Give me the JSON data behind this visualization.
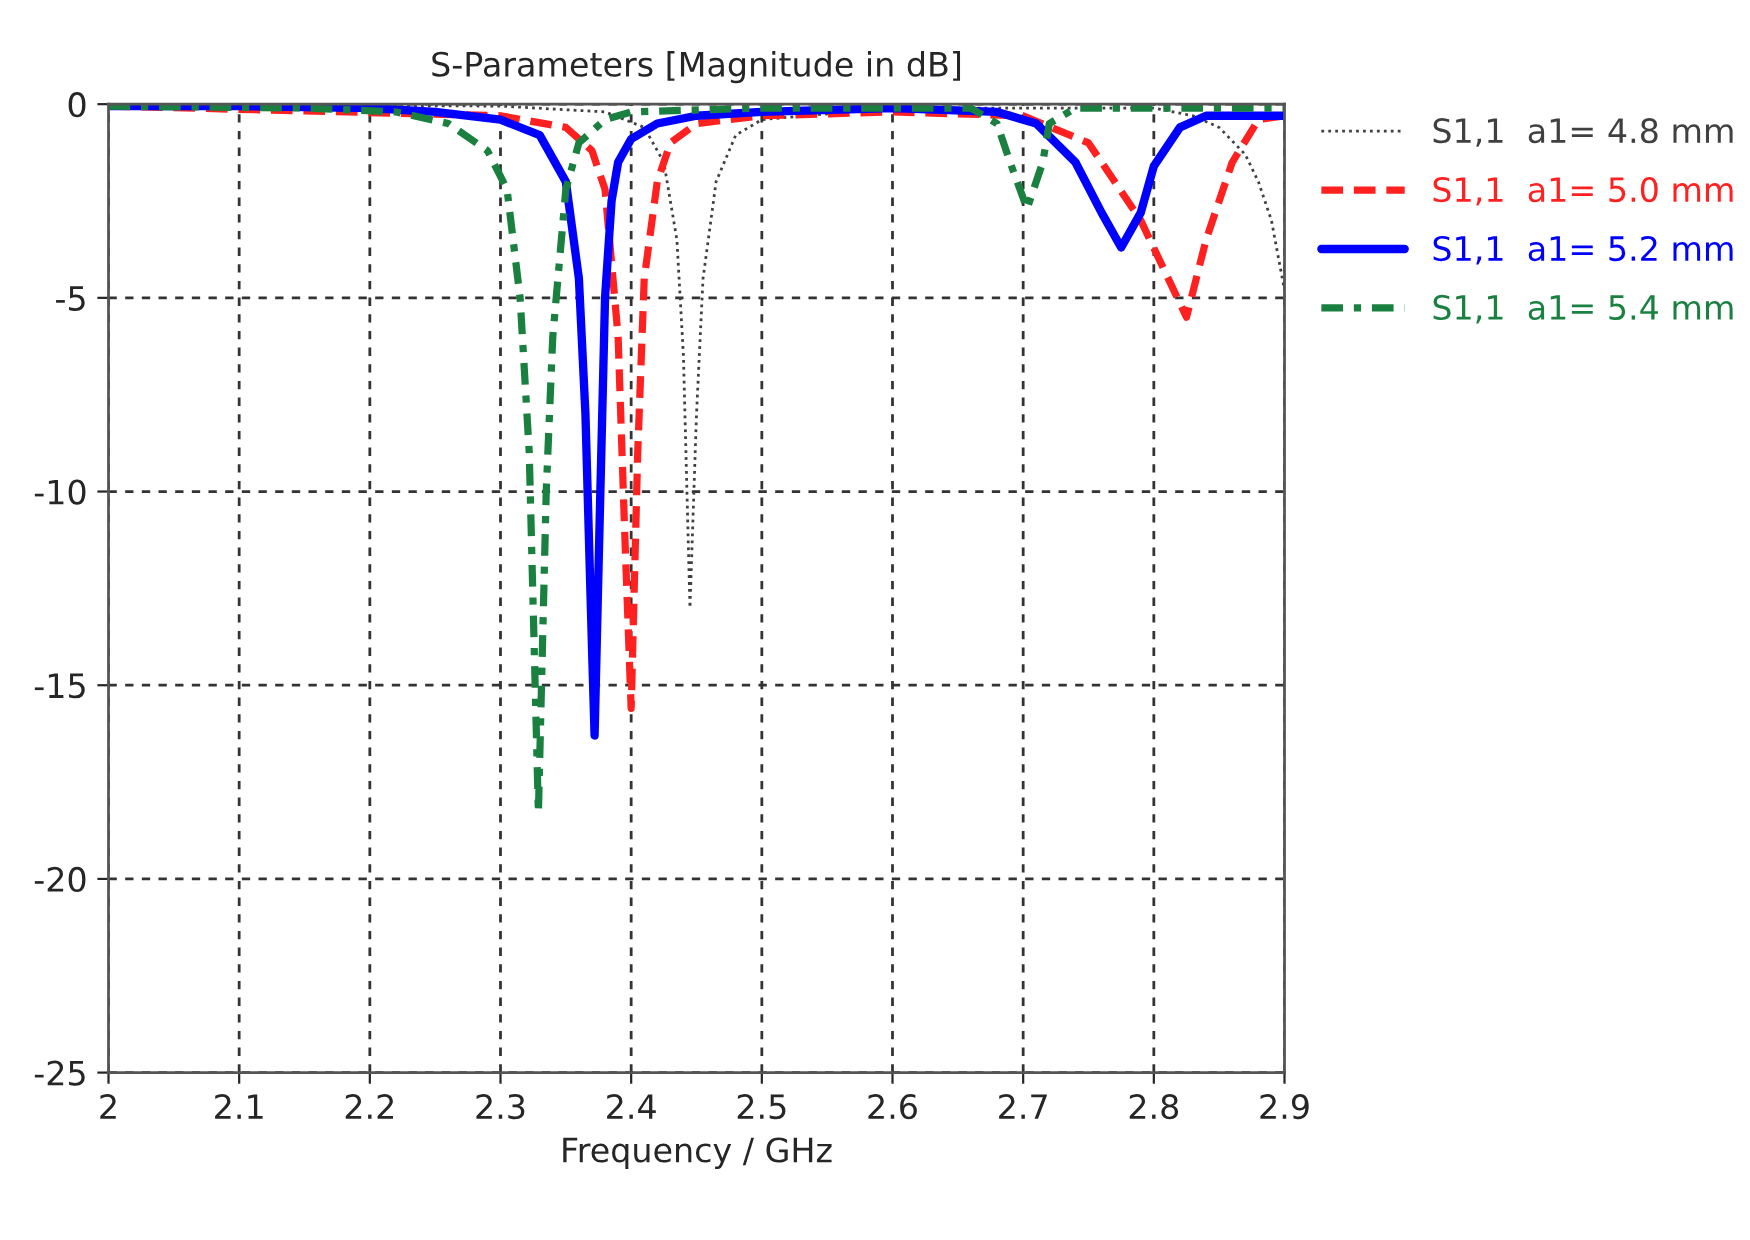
{
  "chart_data": {
    "type": "line",
    "title": "S-Parameters [Magnitude in dB]",
    "xlabel": "Frequency / GHz",
    "xlim": [
      2,
      2.9
    ],
    "xticks": [
      2,
      2.1,
      2.2,
      2.3,
      2.4,
      2.5,
      2.6,
      2.7,
      2.8,
      2.9
    ],
    "ylim": [
      -25,
      0
    ],
    "yticks": [
      {
        "value": -25,
        "label": "-25"
      },
      {
        "value": -20,
        "label": "-20"
      },
      {
        "value": -15,
        "label": "-15"
      },
      {
        "value": -10,
        "label": "-10"
      },
      {
        "value": -5,
        "label": "-5"
      },
      0
    ],
    "grid": true,
    "legend": "right",
    "marker": "none",
    "series": [
      {
        "name": "S1,1  a1= 4.8 mm",
        "color": "#404040",
        "line_style": "dotted",
        "x": [
          2.0,
          2.3,
          2.38,
          2.41,
          2.425,
          2.435,
          2.44,
          2.445,
          2.45,
          2.455,
          2.465,
          2.48,
          2.5,
          2.6,
          2.8,
          2.83,
          2.85,
          2.87,
          2.88,
          2.89,
          2.9
        ],
        "values": [
          0,
          -0.05,
          -0.2,
          -0.6,
          -1.5,
          -3.5,
          -6.5,
          -13.0,
          -8,
          -4.5,
          -2.0,
          -0.8,
          -0.4,
          -0.1,
          -0.1,
          -0.3,
          -0.6,
          -1.3,
          -2.0,
          -3.0,
          -4.8
        ]
      },
      {
        "name": "S1,1  a1= 5.0 mm",
        "color": "#ff2020",
        "line_style": "dashed",
        "x": [
          2.0,
          2.3,
          2.35,
          2.37,
          2.38,
          2.39,
          2.395,
          2.4,
          2.405,
          2.41,
          2.42,
          2.43,
          2.45,
          2.5,
          2.6,
          2.7,
          2.75,
          2.79,
          2.825,
          2.84,
          2.86,
          2.88,
          2.9
        ],
        "values": [
          -0.05,
          -0.3,
          -0.6,
          -1.2,
          -2.2,
          -6,
          -11,
          -15.6,
          -9,
          -4.5,
          -2.0,
          -1.0,
          -0.5,
          -0.3,
          -0.2,
          -0.3,
          -1.0,
          -3.0,
          -5.5,
          -3.5,
          -1.5,
          -0.4,
          -0.3
        ]
      },
      {
        "name": "S1,1  a1= 5.2 mm",
        "color": "#0000ff",
        "line_style": "solid",
        "x": [
          2.0,
          2.1,
          2.2,
          2.25,
          2.3,
          2.33,
          2.35,
          2.36,
          2.365,
          2.37,
          2.372,
          2.375,
          2.38,
          2.385,
          2.39,
          2.4,
          2.42,
          2.45,
          2.5,
          2.6,
          2.68,
          2.71,
          2.74,
          2.76,
          2.775,
          2.79,
          2.8,
          2.82,
          2.84,
          2.9
        ],
        "values": [
          -0.05,
          -0.05,
          -0.1,
          -0.2,
          -0.4,
          -0.8,
          -2.0,
          -4.5,
          -8,
          -14,
          -16.3,
          -12,
          -5,
          -2.5,
          -1.5,
          -0.9,
          -0.5,
          -0.3,
          -0.2,
          -0.1,
          -0.2,
          -0.5,
          -1.5,
          -2.8,
          -3.7,
          -2.8,
          -1.6,
          -0.6,
          -0.3,
          -0.3
        ]
      },
      {
        "name": "S1,1  a1= 5.4 mm",
        "color": "#1a8040",
        "line_style": "dashdot",
        "x": [
          2.0,
          2.15,
          2.22,
          2.26,
          2.29,
          2.305,
          2.315,
          2.322,
          2.329,
          2.335,
          2.34,
          2.35,
          2.36,
          2.38,
          2.4,
          2.5,
          2.66,
          2.68,
          2.69,
          2.703,
          2.715,
          2.72,
          2.74,
          2.9
        ],
        "values": [
          -0.05,
          -0.1,
          -0.2,
          -0.5,
          -1.2,
          -2.2,
          -5,
          -9,
          -18.3,
          -10,
          -6,
          -2.2,
          -1.0,
          -0.4,
          -0.2,
          -0.1,
          -0.1,
          -0.5,
          -1.5,
          -2.7,
          -1.5,
          -0.5,
          -0.1,
          -0.1
        ]
      }
    ]
  }
}
